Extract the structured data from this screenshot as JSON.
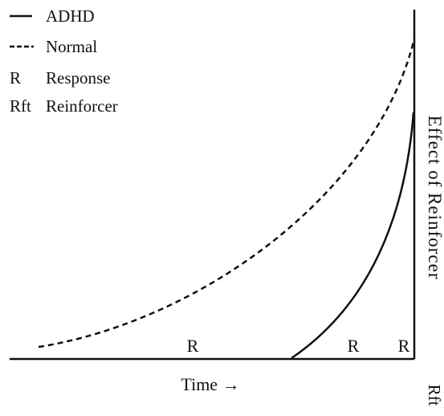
{
  "legend": {
    "adhd": "ADHD",
    "normal": "Normal",
    "response_symbol": "R",
    "response_label": "Response",
    "reinforcer_symbol": "Rft",
    "reinforcer_label": "Reinforcer"
  },
  "axes": {
    "x_label": "Time →",
    "y_label": "Effect of Reinforcer",
    "reinforcer_marker": "Rft"
  },
  "response_markers": [
    "R",
    "R",
    "R"
  ],
  "curves": {
    "adhd_style": "solid",
    "normal_style": "dashed"
  },
  "colors": {
    "ink": "#111111",
    "background": "#ffffff"
  }
}
